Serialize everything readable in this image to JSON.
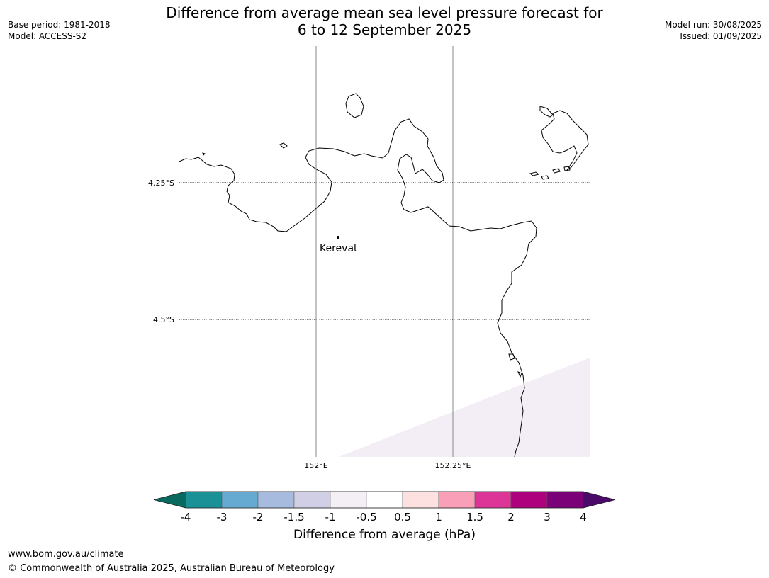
{
  "header": {
    "title_line1": "Difference from average mean sea level pressure forecast for",
    "title_line2": "6 to 12 September 2025",
    "base_period": "Base period: 1981-2018",
    "model": "Model: ACCESS-S2",
    "model_run": "Model run: 30/08/2025",
    "issued": "Issued: 01/09/2025"
  },
  "map": {
    "place_label": "Kerevat",
    "lat_labels": [
      "4.25°S",
      "4.5°S"
    ],
    "lon_labels": [
      "152°E",
      "152.25°E"
    ],
    "shaded_region_color": "#f3eef5"
  },
  "colorbar": {
    "title": "Difference from average (hPa)",
    "tick_labels": [
      "-4",
      "-3",
      "-2",
      "-1.5",
      "-1",
      "-0.5",
      "0.5",
      "1",
      "1.5",
      "2",
      "3",
      "4"
    ],
    "under_color": "#08695e",
    "over_color": "#4b0a6a",
    "colors": [
      "#1a9196",
      "#66a9d1",
      "#a6bbdd",
      "#d0cfe5",
      "#f4eef5",
      "#ffffff",
      "#fde0e0",
      "#f9a0b8",
      "#dd3497",
      "#ae017e",
      "#7a0177"
    ]
  },
  "footer": {
    "url": "www.bom.gov.au/climate",
    "copyright": "© Commonwealth of Australia 2025, Australian Bureau of Meteorology"
  }
}
